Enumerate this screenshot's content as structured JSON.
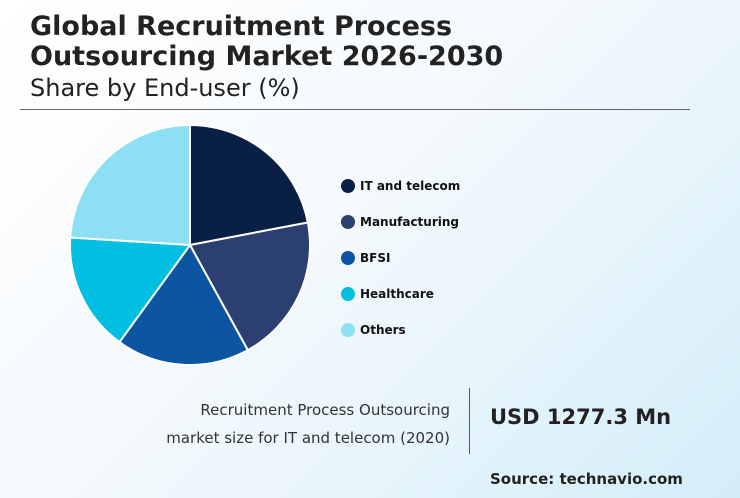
{
  "header": {
    "title_line1": "Global Recruitment Process",
    "title_line2": "Outsourcing Market 2026-2030",
    "subtitle": "Share by End-user (%)"
  },
  "chart_data": {
    "type": "pie",
    "title": "Global Recruitment Process Outsourcing Market 2026-2030",
    "subtitle": "Share by End-user (%)",
    "categories": [
      "IT and telecom",
      "Manufacturing",
      "BFSI",
      "Healthcare",
      "Others"
    ],
    "values": [
      22,
      20,
      18,
      16,
      24
    ],
    "colors": [
      "#0a1f44",
      "#2b3f70",
      "#0b55a3",
      "#00bfe0",
      "#8de0f3"
    ],
    "start_angle_deg": 0,
    "direction": "clockwise",
    "legend_position": "right"
  },
  "stat": {
    "label_line1": "Recruitment Process Outsourcing",
    "label_line2": "market size for IT and telecom (2020)",
    "value": "USD 1277.3 Mn"
  },
  "source": "Source: technavio.com"
}
